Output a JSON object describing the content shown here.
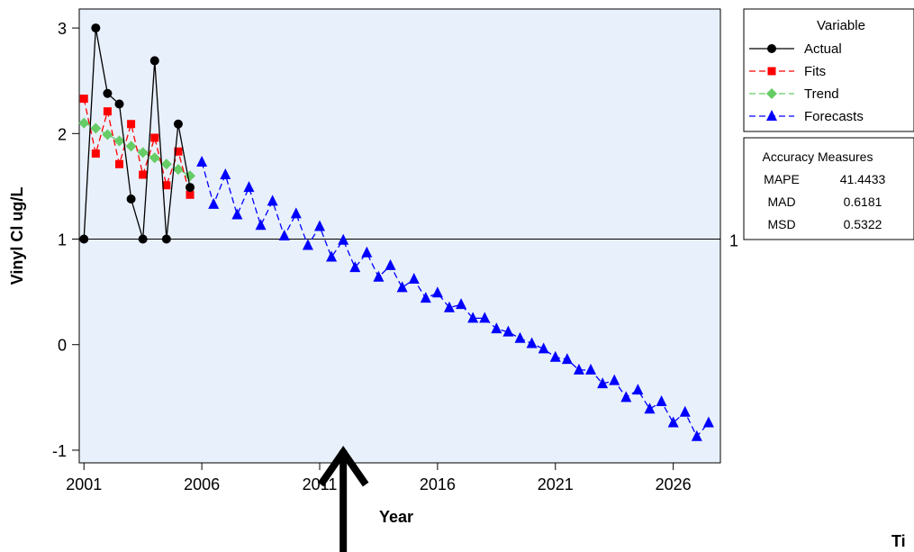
{
  "chart_data": {
    "type": "line",
    "xlabel": "Year",
    "ylabel": "Vinyl Cl ug/L",
    "xlim": [
      2000.8,
      2028.0
    ],
    "ylim": [
      -1.12,
      3.18
    ],
    "x_ticks": [
      2001,
      2006,
      2011,
      2016,
      2021,
      2026
    ],
    "x_tick_labels": [
      "2001",
      "2006",
      "2011",
      "2016",
      "2021",
      "2026"
    ],
    "y_ticks": [
      -1,
      0,
      1,
      2,
      3
    ],
    "y_tick_labels": [
      "-1",
      "0",
      "1",
      "2",
      "3"
    ],
    "reference_line": {
      "y": 1,
      "label": "1"
    },
    "background_color": "#e8f0fb",
    "legend": {
      "title": "Variable",
      "placement": "right"
    },
    "series": [
      {
        "name": "Actual",
        "color": "#000000",
        "marker": "circle",
        "dash": "solid",
        "points": [
          [
            2001.0,
            1.0
          ],
          [
            2001.5,
            3.0
          ],
          [
            2002.0,
            2.38
          ],
          [
            2002.5,
            2.28
          ],
          [
            2003.0,
            1.38
          ],
          [
            2003.5,
            1.0
          ],
          [
            2004.0,
            2.69
          ],
          [
            2004.5,
            1.0
          ],
          [
            2005.0,
            2.09
          ],
          [
            2005.5,
            1.49
          ]
        ]
      },
      {
        "name": "Fits",
        "color": "#ff0000",
        "marker": "square",
        "dash": "dashed",
        "points": [
          [
            2001.0,
            2.33
          ],
          [
            2001.5,
            1.81
          ],
          [
            2002.0,
            2.21
          ],
          [
            2002.5,
            1.71
          ],
          [
            2003.0,
            2.09
          ],
          [
            2003.5,
            1.61
          ],
          [
            2004.0,
            1.96
          ],
          [
            2004.5,
            1.51
          ],
          [
            2005.0,
            1.83
          ],
          [
            2005.5,
            1.42
          ]
        ]
      },
      {
        "name": "Trend",
        "color": "#66cc66",
        "marker": "diamond",
        "dash": "dashed",
        "points": [
          [
            2001.0,
            2.1
          ],
          [
            2001.5,
            2.05
          ],
          [
            2002.0,
            1.99
          ],
          [
            2002.5,
            1.93
          ],
          [
            2003.0,
            1.88
          ],
          [
            2003.5,
            1.82
          ],
          [
            2004.0,
            1.77
          ],
          [
            2004.5,
            1.71
          ],
          [
            2005.0,
            1.66
          ],
          [
            2005.5,
            1.6
          ]
        ]
      },
      {
        "name": "Forecasts",
        "color": "#0000ff",
        "marker": "triangle",
        "dash": "dashed",
        "points": [
          [
            2006.0,
            1.73
          ],
          [
            2006.5,
            1.33
          ],
          [
            2007.0,
            1.61
          ],
          [
            2007.5,
            1.23
          ],
          [
            2008.0,
            1.49
          ],
          [
            2008.5,
            1.13
          ],
          [
            2009.0,
            1.36
          ],
          [
            2009.5,
            1.03
          ],
          [
            2010.0,
            1.24
          ],
          [
            2010.5,
            0.94
          ],
          [
            2011.0,
            1.12
          ],
          [
            2011.5,
            0.83
          ],
          [
            2012.0,
            0.99
          ],
          [
            2012.5,
            0.73
          ],
          [
            2013.0,
            0.87
          ],
          [
            2013.5,
            0.64
          ],
          [
            2014.0,
            0.75
          ],
          [
            2014.5,
            0.54
          ],
          [
            2015.0,
            0.62
          ],
          [
            2015.5,
            0.44
          ],
          [
            2016.0,
            0.49
          ],
          [
            2016.5,
            0.35
          ],
          [
            2017.0,
            0.38
          ],
          [
            2017.5,
            0.25
          ],
          [
            2018.0,
            0.25
          ],
          [
            2018.5,
            0.15
          ],
          [
            2019.0,
            0.12
          ],
          [
            2019.5,
            0.06
          ],
          [
            2020.0,
            0.01
          ],
          [
            2020.5,
            -0.04
          ],
          [
            2021.0,
            -0.12
          ],
          [
            2021.5,
            -0.14
          ],
          [
            2022.0,
            -0.24
          ],
          [
            2022.5,
            -0.24
          ],
          [
            2023.0,
            -0.37
          ],
          [
            2023.5,
            -0.34
          ],
          [
            2024.0,
            -0.5
          ],
          [
            2024.5,
            -0.43
          ],
          [
            2025.0,
            -0.61
          ],
          [
            2025.5,
            -0.54
          ],
          [
            2026.0,
            -0.74
          ],
          [
            2026.5,
            -0.64
          ],
          [
            2027.0,
            -0.87
          ],
          [
            2027.5,
            -0.74
          ]
        ]
      }
    ],
    "accuracy_measures": {
      "title": "Accuracy Measures",
      "rows": [
        {
          "label": "MAPE",
          "value": "41.4433"
        },
        {
          "label": "MAD",
          "value": "0.6181"
        },
        {
          "label": "MSD",
          "value": "0.5322"
        }
      ]
    },
    "annotation_arrow": {
      "x": 2012.0,
      "y_tip": -0.95,
      "direction": "up"
    },
    "cutoff_text": "Ti"
  }
}
